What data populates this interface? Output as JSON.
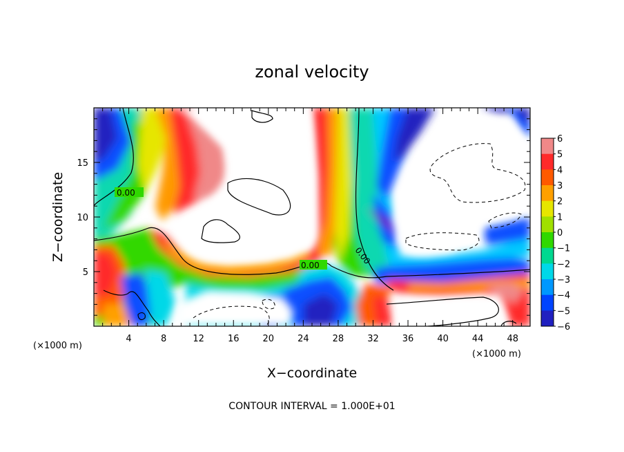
{
  "chart_data": {
    "type": "heatmap",
    "title": "zonal velocity",
    "xlabel": "X−coordinate",
    "ylabel": "Z−coordinate",
    "x_unit_left": "(×1000 m)",
    "x_unit_right": "(×1000 m)",
    "xlim": [
      0,
      50
    ],
    "ylim": [
      0,
      20
    ],
    "x_ticks": [
      4,
      8,
      12,
      16,
      20,
      24,
      28,
      32,
      36,
      40,
      44,
      48
    ],
    "y_ticks": [
      5,
      10,
      15
    ],
    "colorbar": {
      "levels": [
        6,
        5,
        4,
        3,
        2,
        1,
        0,
        -1,
        -2,
        -3,
        -4,
        -5,
        -6
      ],
      "labels": [
        "6",
        "5",
        "4",
        "3",
        "2",
        "1",
        "0",
        "−1",
        "−2",
        "−3",
        "−4",
        "−5",
        "−6"
      ],
      "colors": [
        "#f08888",
        "#ff2a2a",
        "#ff5a00",
        "#ffa000",
        "#e6e600",
        "#a0e000",
        "#30d800",
        "#00d890",
        "#00d8e8",
        "#0098ff",
        "#0044ff",
        "#2020c0",
        "#7a10a8"
      ]
    },
    "contour_labels": [
      "0.00",
      "0.00",
      "0.00"
    ],
    "footer": "CONTOUR INTERVAL =  1.000E+01"
  }
}
